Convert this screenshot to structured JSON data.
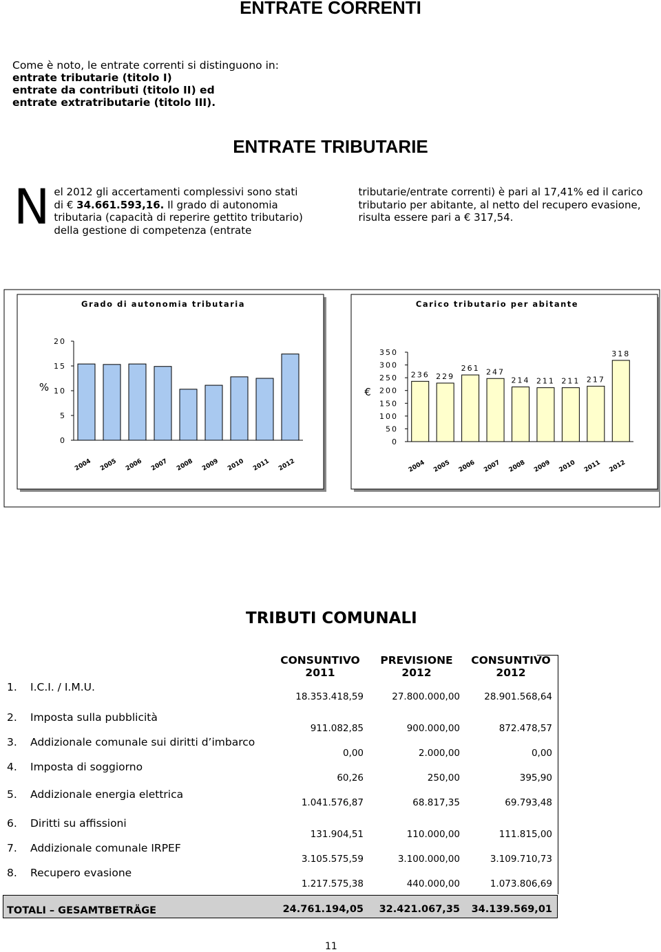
{
  "header": {
    "title": "ENTRATE CORRENTI"
  },
  "intro": {
    "lead": "Come è noto, le entrate correnti si distinguono in:",
    "items": [
      "entrate tributarie (titolo I)",
      "entrate da contributi (titolo II) ed",
      "entrate extratributarie (titolo III)."
    ]
  },
  "section": {
    "title": "ENTRATE TRIBUTARIE",
    "drop_cap": "N",
    "text_1": "el 2012 gli accertamenti complessivi sono stati di €",
    "amount": "34.661.593,16.",
    "text_2": "Il grado di autonomia tributaria (capacità di reperire gettito tributario) della gestione di competenza (entrate tributarie/entrate correnti) è pari al 17,41% ed il carico tributario per abitante, al netto del recupero evasione, risulta essere pari a € 317,54."
  },
  "chart_data": [
    {
      "type": "bar",
      "title": "Grado di autonomia tributaria",
      "y_label": "%",
      "categories": [
        "2004",
        "2005",
        "2006",
        "2007",
        "2008",
        "2009",
        "2010",
        "2011",
        "2012"
      ],
      "values": [
        15.4,
        15.3,
        15.4,
        14.9,
        10.3,
        11.1,
        12.8,
        12.5,
        17.41
      ],
      "color": "#a9c9f0",
      "ylim": [
        0,
        20
      ],
      "yticks": [
        0,
        5,
        10,
        15,
        20
      ]
    },
    {
      "type": "bar",
      "title": "Carico tributario per abitante",
      "y_label": "€",
      "categories": [
        "2004",
        "2005",
        "2006",
        "2007",
        "2008",
        "2009",
        "2010",
        "2011",
        "2012"
      ],
      "values": [
        236,
        229,
        261,
        247,
        214,
        211,
        211,
        217,
        318
      ],
      "color": "#ffffcc",
      "ylim": [
        0,
        350
      ],
      "yticks": [
        0,
        50,
        100,
        150,
        200,
        250,
        300,
        350
      ],
      "data_labels": true
    }
  ],
  "tributi": {
    "title": "TRIBUTI COMUNALI",
    "columns": [
      {
        "label": "CONSUNTIVO",
        "year": "2011"
      },
      {
        "label": "PREVISIONE",
        "year": "2012"
      },
      {
        "label": "CONSUNTIVO",
        "year": "2012"
      }
    ],
    "rows": [
      {
        "num": "1.",
        "label": "I.C.I. / I.M.U.",
        "values": [
          "18.353.418,59",
          "27.800.000,00",
          "28.901.568,64"
        ]
      },
      {
        "num": "2.",
        "label": "Imposta sulla pubblicità",
        "values": [
          "911.082,85",
          "900.000,00",
          "872.478,57"
        ]
      },
      {
        "num": "3.",
        "label": "Addizionale comunale sui diritti d’imbarco",
        "values": [
          "0,00",
          "2.000,00",
          "0,00"
        ]
      },
      {
        "num": "4.",
        "label": "Imposta di soggiorno",
        "values": [
          "60,26",
          "250,00",
          "395,90"
        ]
      },
      {
        "num": "5.",
        "label": "Addizionale energia elettrica",
        "values": [
          "1.041.576,87",
          "68.817,35",
          "69.793,48"
        ]
      },
      {
        "num": "6.",
        "label": "Diritti su affissioni",
        "values": [
          "131.904,51",
          "110.000,00",
          "111.815,00"
        ]
      },
      {
        "num": "7.",
        "label": "Addizionale comunale IRPEF",
        "values": [
          "3.105.575,59",
          "3.100.000,00",
          "3.109.710,73"
        ]
      },
      {
        "num": "8.",
        "label": "Recupero evasione",
        "values": [
          "1.217.575,38",
          "440.000,00",
          "1.073.806,69"
        ]
      }
    ],
    "total": {
      "label": "TOTALI – GESAMTBETRÄGE",
      "values": [
        "24.761.194,05",
        "32.421.067,35",
        "34.139.569,01"
      ]
    }
  },
  "footer": {
    "page_number": "11"
  }
}
